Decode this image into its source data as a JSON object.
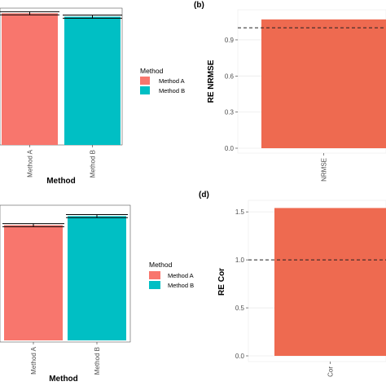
{
  "chart_data": [
    {
      "id": "top-left",
      "type": "bar",
      "xlabel": "Method",
      "categories": [
        "Method A",
        "Method B"
      ],
      "values": [
        0.98,
        0.955
      ],
      "errors": [
        0.012,
        0.012
      ],
      "colors": [
        "#F8766D",
        "#00BFC4"
      ],
      "legend": {
        "title": "Method",
        "entries": [
          "Method A",
          "Method B"
        ]
      }
    },
    {
      "id": "b",
      "panel_label": "(b)",
      "type": "bar",
      "ylabel": "RE NRMSE",
      "categories": [
        "NRMSE"
      ],
      "values": [
        1.07
      ],
      "ylim": [
        0,
        1.15
      ],
      "yticks": [
        "0.0",
        "0.3",
        "0.6",
        "0.9"
      ],
      "reference_line": 1.0,
      "colors": [
        "#EE6A50"
      ]
    },
    {
      "id": "bottom-left",
      "type": "bar",
      "xlabel": "Method",
      "categories": [
        "Method A",
        "Method B"
      ],
      "values": [
        0.89,
        0.96
      ],
      "errors": [
        0.012,
        0.012
      ],
      "colors": [
        "#F8766D",
        "#00BFC4"
      ],
      "legend": {
        "title": "Method",
        "entries": [
          "Method A",
          "Method B"
        ]
      }
    },
    {
      "id": "d",
      "panel_label": "(d)",
      "type": "bar",
      "ylabel": "RE Cor",
      "categories": [
        "Cor"
      ],
      "values": [
        1.54
      ],
      "ylim": [
        0,
        1.62
      ],
      "yticks": [
        "0.0",
        "0.5",
        "1.0",
        "1.5"
      ],
      "reference_line": 1.0,
      "colors": [
        "#EE6A50"
      ]
    }
  ]
}
